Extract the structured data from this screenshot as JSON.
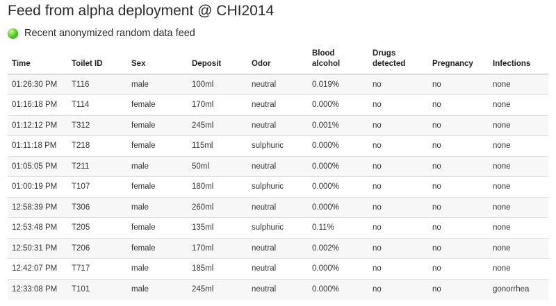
{
  "header": {
    "title": "Feed from alpha deployment @ CHI2014",
    "subtitle": "Recent anonymized random data feed",
    "status_color": "#4cc41f"
  },
  "table": {
    "columns": [
      {
        "line1": "Time",
        "line2": ""
      },
      {
        "line1": "Toilet ID",
        "line2": ""
      },
      {
        "line1": "Sex",
        "line2": ""
      },
      {
        "line1": "Deposit",
        "line2": ""
      },
      {
        "line1": "Odor",
        "line2": ""
      },
      {
        "line1": "Blood",
        "line2": "alcohol"
      },
      {
        "line1": "Drugs",
        "line2": "detected"
      },
      {
        "line1": "Pregnancy",
        "line2": ""
      },
      {
        "line1": "Infections",
        "line2": ""
      }
    ],
    "rows": [
      [
        "01:26:30 PM",
        "T116",
        "male",
        "100ml",
        "neutral",
        "0.019%",
        "no",
        "no",
        "none"
      ],
      [
        "01:16:18 PM",
        "T114",
        "female",
        "170ml",
        "neutral",
        "0.000%",
        "no",
        "no",
        "none"
      ],
      [
        "01:12:12 PM",
        "T312",
        "female",
        "245ml",
        "neutral",
        "0.001%",
        "no",
        "no",
        "none"
      ],
      [
        "01:11:18 PM",
        "T218",
        "female",
        "115ml",
        "sulphuric",
        "0.000%",
        "no",
        "no",
        "none"
      ],
      [
        "01:05:05 PM",
        "T211",
        "male",
        "50ml",
        "neutral",
        "0.000%",
        "no",
        "no",
        "none"
      ],
      [
        "01:00:19 PM",
        "T107",
        "female",
        "180ml",
        "sulphuric",
        "0.000%",
        "no",
        "no",
        "none"
      ],
      [
        "12:58:39 PM",
        "T306",
        "male",
        "260ml",
        "neutral",
        "0.000%",
        "no",
        "no",
        "none"
      ],
      [
        "12:53:48 PM",
        "T205",
        "female",
        "135ml",
        "sulphuric",
        "0.11%",
        "no",
        "no",
        "none"
      ],
      [
        "12:50:31 PM",
        "T206",
        "female",
        "170ml",
        "neutral",
        "0.002%",
        "no",
        "no",
        "none"
      ],
      [
        "12:42:07 PM",
        "T717",
        "male",
        "185ml",
        "neutral",
        "0.000%",
        "no",
        "no",
        "none"
      ],
      [
        "12:33:08 PM",
        "T101",
        "male",
        "245ml",
        "neutral",
        "0.000%",
        "no",
        "no",
        "gonorrhea"
      ]
    ]
  }
}
